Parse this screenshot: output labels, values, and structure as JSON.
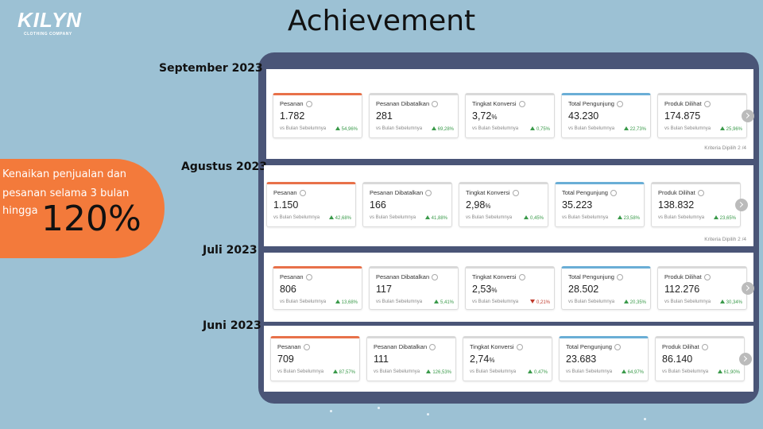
{
  "logo": {
    "name": "KILYN",
    "tagline": "CLOTHING COMPANY"
  },
  "title": "Achievement",
  "callout": {
    "lines": [
      "Kenaikan penjualan dan",
      "pesanan selama 3 bulan",
      "hingga"
    ],
    "highlight": "120%"
  },
  "panels": [
    {
      "month": "September 2023",
      "criteria": "Kriteria Dipilih 2 /4",
      "cards": [
        {
          "label": "Pesanan",
          "value": "1.782",
          "compare": "vs Bulan Sebelumnya",
          "change": "54,96%",
          "trend": "up",
          "accent": "#e8714a"
        },
        {
          "label": "Pesanan Dibatalkan",
          "value": "281",
          "compare": "vs Bulan Sebelumnya",
          "change": "69,28%",
          "trend": "up"
        },
        {
          "label": "Tingkat Konversi",
          "value": "3,72",
          "unit": "%",
          "compare": "vs Bulan Sebelumnya",
          "change": "0,75%",
          "trend": "up"
        },
        {
          "label": "Total Pengunjung",
          "value": "43.230",
          "compare": "vs Bulan Sebelumnya",
          "change": "22,73%",
          "trend": "up",
          "accent": "#6aaed6"
        },
        {
          "label": "Produk Dilihat",
          "value": "174.875",
          "compare": "vs Bulan Sebelumnya",
          "change": "25,96%",
          "trend": "up"
        }
      ]
    },
    {
      "month": "Agustus 2023",
      "criteria": "Kriteria Dipilih 2 /4",
      "cards": [
        {
          "label": "Pesanan",
          "value": "1.150",
          "compare": "vs Bulan Sebelumnya",
          "change": "42,68%",
          "trend": "up",
          "accent": "#e8714a"
        },
        {
          "label": "Pesanan Dibatalkan",
          "value": "166",
          "compare": "vs Bulan Sebelumnya",
          "change": "41,88%",
          "trend": "up"
        },
        {
          "label": "Tingkat Konversi",
          "value": "2,98",
          "unit": "%",
          "compare": "vs Bulan Sebelumnya",
          "change": "0,45%",
          "trend": "up"
        },
        {
          "label": "Total Pengunjung",
          "value": "35.223",
          "compare": "vs Bulan Sebelumnya",
          "change": "23,58%",
          "trend": "up",
          "accent": "#6aaed6"
        },
        {
          "label": "Produk Dilihat",
          "value": "138.832",
          "compare": "vs Bulan Sebelumnya",
          "change": "23,65%",
          "trend": "up"
        }
      ]
    },
    {
      "month": "Juli  2023",
      "cards": [
        {
          "label": "Pesanan",
          "value": "806",
          "compare": "vs Bulan Sebelumnya",
          "change": "13,68%",
          "trend": "up",
          "accent": "#e8714a"
        },
        {
          "label": "Pesanan Dibatalkan",
          "value": "117",
          "compare": "vs Bulan Sebelumnya",
          "change": "5,41%",
          "trend": "up"
        },
        {
          "label": "Tingkat Konversi",
          "value": "2,53",
          "unit": "%",
          "compare": "vs Bulan Sebelumnya",
          "change": "0,21%",
          "trend": "down"
        },
        {
          "label": "Total Pengunjung",
          "value": "28.502",
          "compare": "vs Bulan Sebelumnya",
          "change": "20,35%",
          "trend": "up",
          "accent": "#6aaed6"
        },
        {
          "label": "Produk Dilihat",
          "value": "112.276",
          "compare": "vs Bulan Sebelumnya",
          "change": "30,34%",
          "trend": "up"
        }
      ]
    },
    {
      "month": "Juni 2023",
      "cards": [
        {
          "label": "Pesanan",
          "value": "709",
          "compare": "vs Bulan Sebelumnya",
          "change": "87,57%",
          "trend": "up",
          "accent": "#e8714a"
        },
        {
          "label": "Pesanan Dibatalkan",
          "value": "111",
          "compare": "vs Bulan Sebelumnya",
          "change": "126,53%",
          "trend": "up"
        },
        {
          "label": "Tingkat Konversi",
          "value": "2,74",
          "unit": "%",
          "compare": "vs Bulan Sebelumnya",
          "change": "0,47%",
          "trend": "up"
        },
        {
          "label": "Total Pengunjung",
          "value": "23.683",
          "compare": "vs Bulan Sebelumnya",
          "change": "64,97%",
          "trend": "up",
          "accent": "#6aaed6"
        },
        {
          "label": "Produk Dilihat",
          "value": "86.140",
          "compare": "vs Bulan Sebelumnya",
          "change": "61,90%",
          "trend": "up"
        }
      ]
    }
  ]
}
